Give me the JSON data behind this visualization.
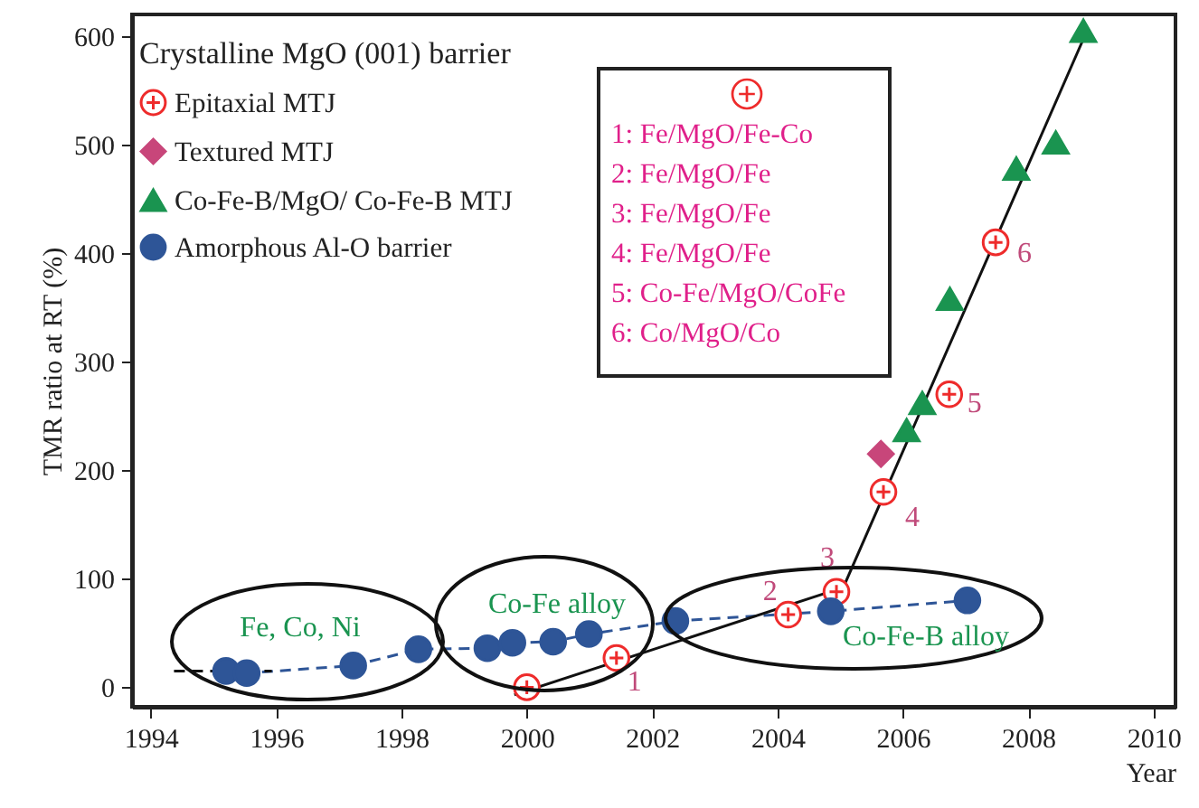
{
  "chart_data": {
    "type": "scatter",
    "xlabel": "Year",
    "ylabel": "TMR ratio at RT (%)",
    "xlim": [
      1993.7,
      2010.35
    ],
    "ylim": [
      -18,
      620
    ],
    "xticks": [
      1994,
      1996,
      1998,
      2000,
      2002,
      2004,
      2006,
      2008,
      2010
    ],
    "yticks": [
      0,
      100,
      200,
      300,
      400,
      500,
      600
    ],
    "grid": false,
    "legend": "top left",
    "legend_title": "Crystalline MgO (001) barrier",
    "annotations": [
      "1: Fe/MgO/Fe-Co",
      "2: Fe/MgO/Fe",
      "3: Fe/MgO/Fe",
      "4: Fe/MgO/Fe",
      "5: Co-Fe/MgO/CoFe",
      "6: Co/MgO/Co",
      "Fe, Co, Ni",
      "Co-Fe alloy",
      "Co-Fe-B alloy",
      {
        "text": "1",
        "x": 2001.43,
        "y": 27
      },
      {
        "text": "2",
        "x": 2004.17,
        "y": 67
      },
      {
        "text": "3",
        "x": 2004.94,
        "y": 88
      },
      {
        "text": "4",
        "x": 2005.69,
        "y": 180
      },
      {
        "text": "5",
        "x": 2006.74,
        "y": 270
      },
      {
        "text": "6",
        "x": 2007.48,
        "y": 410
      }
    ],
    "series": [
      {
        "name": "Epitaxial MTJ",
        "marker": "cross",
        "color": "#ee2b2b",
        "x": [
          2000,
          2001.43,
          2004.17,
          2004.94,
          2005.69,
          2006.74,
          2007.48
        ],
        "values": [
          0,
          27,
          67,
          88,
          180,
          270,
          410
        ]
      },
      {
        "name": "Textured MTJ",
        "marker": "diamond",
        "color": "#c8467a",
        "x": [
          2005.65
        ],
        "values": [
          215
        ]
      },
      {
        "name": "Co-Fe-B/MgO/ Co-Fe-B MTJ",
        "marker": "triangle",
        "color": "#1a9450",
        "x": [
          2006.06,
          2006.31,
          2006.75,
          2007.81,
          2008.44,
          2008.88
        ],
        "values": [
          237,
          262,
          358,
          478,
          502,
          605
        ]
      },
      {
        "name": "Amorphous Al-O barrier",
        "type": "line",
        "marker": "circle",
        "line_style": "dashed",
        "color": "#2e5597",
        "x": [
          1995.2,
          1995.53,
          1997.23,
          1998.27,
          1999.37,
          1999.77,
          2000.42,
          2000.99,
          2002.37,
          2004.85,
          2007.03
        ],
        "values": [
          15,
          13,
          20,
          35,
          36,
          41,
          42,
          49,
          61,
          70,
          80
        ]
      },
      {
        "type": "line",
        "marker": "none",
        "line_style": "solid",
        "color": "#111111",
        "x": [
          1999.8,
          2005.05,
          2008.9
        ],
        "values": [
          -7,
          92,
          600
        ]
      },
      {
        "type": "line",
        "marker": "none",
        "line_style": "dashed",
        "color": "#111111",
        "x": [
          1994.37,
          1995.93
        ],
        "values": [
          15,
          15
        ]
      }
    ]
  }
}
